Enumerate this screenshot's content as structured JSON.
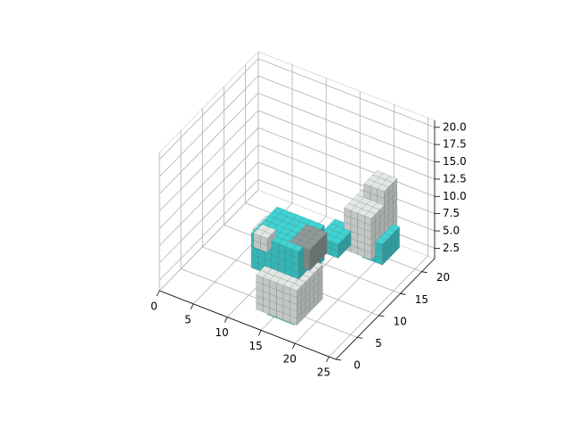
{
  "chart_data": {
    "type": "voxel-3d",
    "title": "",
    "xlabel": "",
    "ylabel": "",
    "zlabel": "",
    "x_ticks": [
      "0",
      "5",
      "10",
      "15",
      "20",
      "25"
    ],
    "y_ticks": [
      "0",
      "5",
      "10",
      "15",
      "20"
    ],
    "z_ticks": [
      "2.5",
      "5.0",
      "7.5",
      "10.0",
      "12.5",
      "15.0",
      "17.5",
      "20.0"
    ],
    "xlim": [
      0,
      26
    ],
    "ylim": [
      0,
      23
    ],
    "zlim": [
      1,
      21
    ],
    "grid": true,
    "colors": {
      "voxel_light": "#e2e7e4",
      "voxel_cyan": "#3fd3d3",
      "voxel_dark": "#8f9a98",
      "pane_left": "#f2f2f2",
      "pane_back": "#f5f5f5",
      "pane_floor": "#f7f7f7"
    },
    "voxel_blocks": [
      {
        "x": [
          13,
          19
        ],
        "y": [
          2,
          8
        ],
        "z": [
          2,
          7
        ],
        "color": "light"
      },
      {
        "x": [
          14,
          18
        ],
        "y": [
          3,
          7
        ],
        "z": [
          1,
          3
        ],
        "color": "cyan"
      },
      {
        "x": [
          11,
          18
        ],
        "y": [
          4,
          10
        ],
        "z": [
          6,
          11
        ],
        "color": "cyan"
      },
      {
        "x": [
          10,
          13
        ],
        "y": [
          6,
          9
        ],
        "z": [
          7,
          10
        ],
        "color": "light"
      },
      {
        "x": [
          16,
          19
        ],
        "y": [
          5,
          9
        ],
        "z": [
          8,
          11
        ],
        "color": "dark"
      },
      {
        "x": [
          12,
          14
        ],
        "y": [
          3,
          5
        ],
        "z": [
          10,
          12
        ],
        "color": "light"
      },
      {
        "x": [
          17,
          20
        ],
        "y": [
          10,
          14
        ],
        "z": [
          7,
          9
        ],
        "color": "cyan"
      },
      {
        "x": [
          19,
          23
        ],
        "y": [
          13,
          19
        ],
        "z": [
          6,
          12
        ],
        "color": "light"
      },
      {
        "x": [
          21,
          24
        ],
        "y": [
          14,
          18
        ],
        "z": [
          5,
          8
        ],
        "color": "cyan"
      },
      {
        "x": [
          20,
          23
        ],
        "y": [
          16,
          19
        ],
        "z": [
          11,
          14
        ],
        "color": "light"
      }
    ]
  }
}
